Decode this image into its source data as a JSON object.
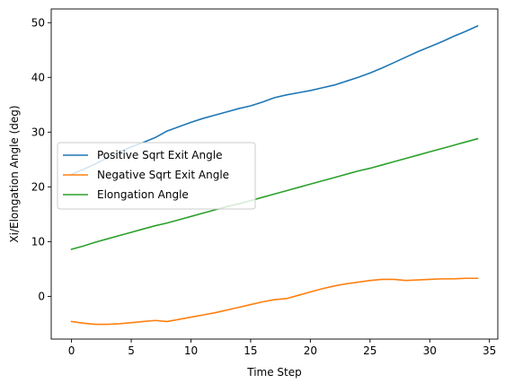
{
  "chart_data": {
    "type": "line",
    "title": "",
    "xlabel": "Time Step",
    "ylabel": "Xi/Elongation Angle (deg)",
    "xlim": [
      -1.7,
      35.7
    ],
    "ylim": [
      -7.8,
      52.5
    ],
    "xticks": [
      0,
      5,
      10,
      15,
      20,
      25,
      30,
      35
    ],
    "yticks": [
      0,
      10,
      20,
      30,
      40,
      50
    ],
    "grid": false,
    "legend_position": "center-left",
    "x": [
      0,
      1,
      2,
      3,
      4,
      5,
      6,
      7,
      8,
      9,
      10,
      11,
      12,
      13,
      14,
      15,
      16,
      17,
      18,
      19,
      20,
      21,
      22,
      23,
      24,
      25,
      26,
      27,
      28,
      29,
      30,
      31,
      32,
      33,
      34
    ],
    "series": [
      {
        "name": "Positive Sqrt Exit Angle",
        "color": "#1f77b4",
        "values": [
          22.3,
          23.2,
          24.2,
          25.3,
          26.4,
          27.3,
          28.1,
          29.0,
          30.2,
          31.0,
          31.8,
          32.5,
          33.1,
          33.7,
          34.3,
          34.8,
          35.5,
          36.3,
          36.8,
          37.2,
          37.6,
          38.1,
          38.6,
          39.3,
          40.0,
          40.8,
          41.7,
          42.7,
          43.7,
          44.7,
          45.6,
          46.5,
          47.5,
          48.4,
          49.4
        ]
      },
      {
        "name": "Negative Sqrt Exit Angle",
        "color": "#ff7f0e",
        "values": [
          -4.6,
          -4.9,
          -5.1,
          -5.1,
          -5.0,
          -4.8,
          -4.6,
          -4.4,
          -4.6,
          -4.2,
          -3.8,
          -3.4,
          -3.0,
          -2.5,
          -2.0,
          -1.5,
          -1.0,
          -0.6,
          -0.4,
          0.2,
          0.8,
          1.4,
          1.9,
          2.3,
          2.6,
          2.9,
          3.1,
          3.1,
          2.9,
          3.0,
          3.1,
          3.2,
          3.2,
          3.3,
          3.3
        ]
      },
      {
        "name": "Elongation Angle",
        "color": "#2ca02c",
        "values": [
          8.6,
          9.2,
          9.9,
          10.5,
          11.1,
          11.7,
          12.3,
          12.9,
          13.4,
          14.0,
          14.6,
          15.2,
          15.8,
          16.4,
          16.9,
          17.5,
          18.1,
          18.7,
          19.3,
          19.9,
          20.5,
          21.1,
          21.7,
          22.3,
          22.9,
          23.4,
          24.0,
          24.6,
          25.2,
          25.8,
          26.4,
          27.0,
          27.6,
          28.2,
          28.8
        ]
      }
    ]
  }
}
